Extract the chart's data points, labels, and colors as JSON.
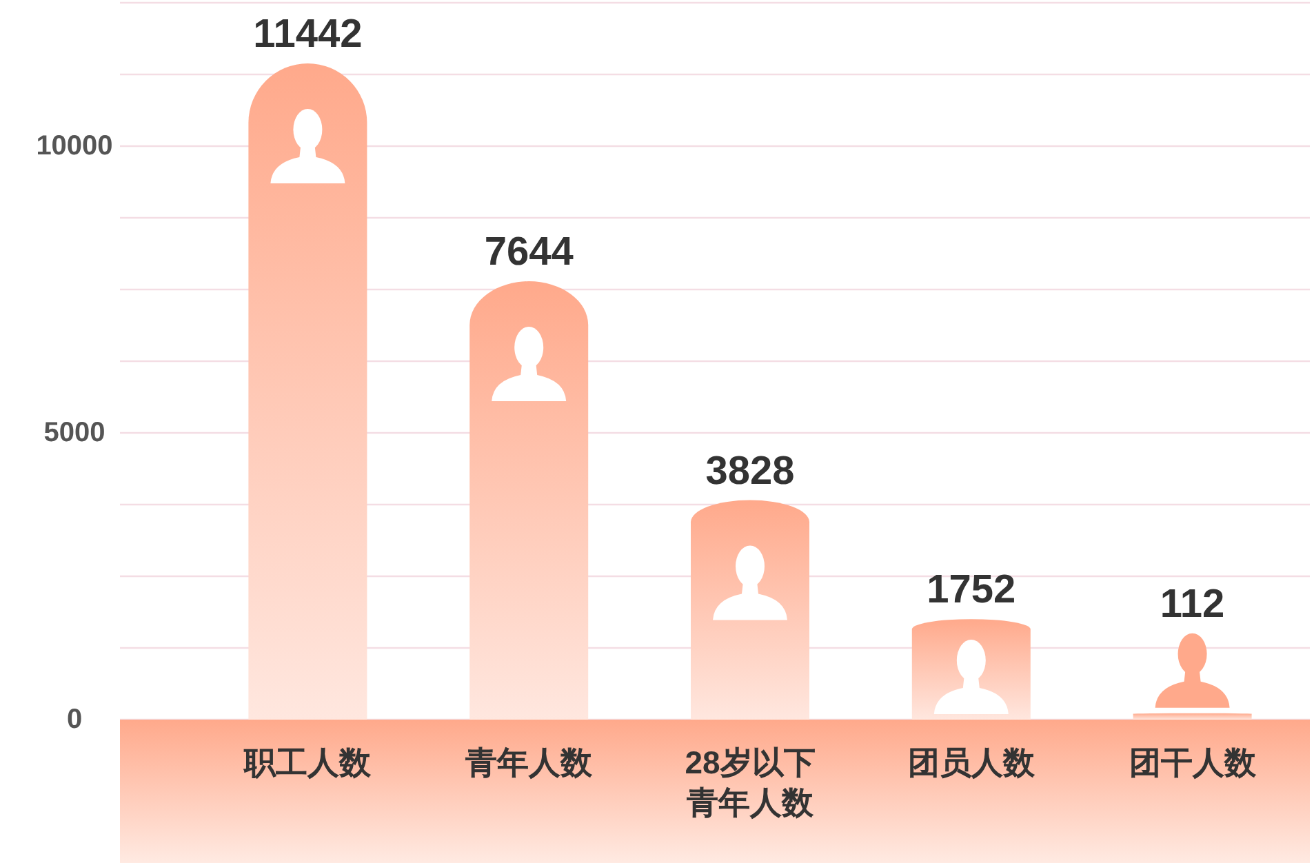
{
  "chart_data": {
    "type": "bar",
    "categories": [
      "职工人数",
      "青年人数",
      "28岁以下青年人数",
      "团员人数",
      "团干人数"
    ],
    "values": [
      11442,
      7644,
      3828,
      1752,
      112
    ],
    "color": "#ffa98b",
    "data_labels": true,
    "ylim": [
      0,
      12500
    ],
    "yticks": [
      0,
      {
        "value": 1250,
        "label": null
      },
      {
        "value": 2500,
        "label": null
      },
      {
        "value": 3750,
        "label": null
      },
      5000,
      {
        "value": 6250,
        "label": null
      },
      {
        "value": 7500,
        "label": null
      },
      {
        "value": 8750,
        "label": null
      },
      10000,
      {
        "value": 11250,
        "label": null
      },
      {
        "value": 12500,
        "label": null
      }
    ],
    "grid": "y"
  }
}
